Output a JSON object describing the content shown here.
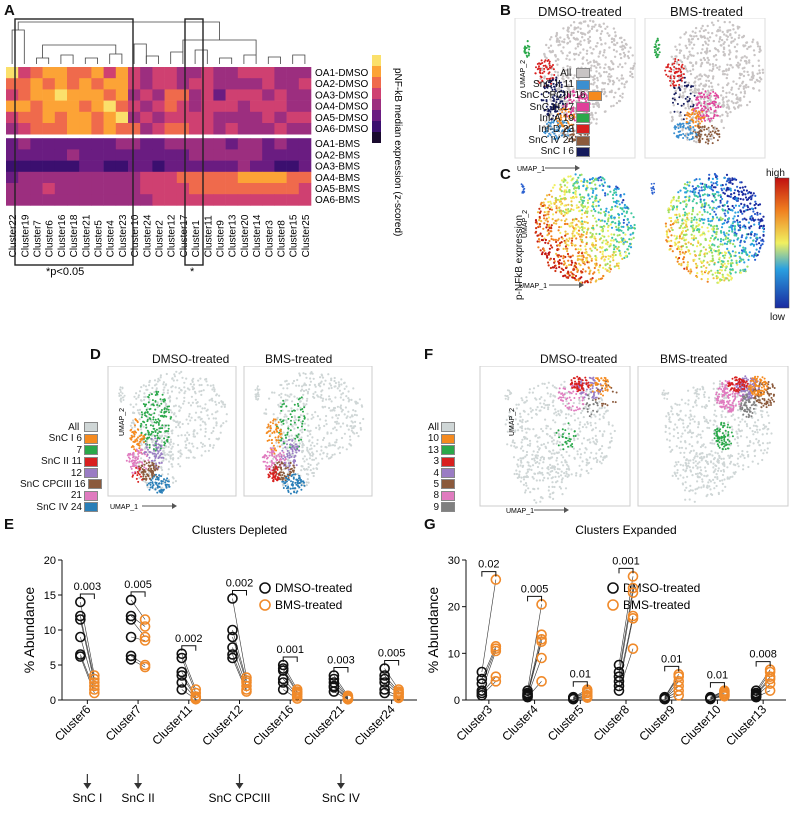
{
  "panel_letters": [
    "A",
    "B",
    "C",
    "D",
    "E",
    "F",
    "G"
  ],
  "panel_a": {
    "rows": [
      "OA1-DMSO",
      "OA2-DMSO",
      "OA3-DMSO",
      "OA4-DMSO",
      "OA5-DMSO",
      "OA6-DMSO",
      "OA1-BMS",
      "OA2-BMS",
      "OA3-BMS",
      "OA4-BMS",
      "OA5-BMS",
      "OA6-BMS"
    ],
    "columns": [
      "Cluster22",
      "Cluster19",
      "Cluster7",
      "Cluster6",
      "Cluster16",
      "Cluster18",
      "Cluster21",
      "Cluster5",
      "Cluster4",
      "Cluster23",
      "Cluster10",
      "Cluster24",
      "Cluster2",
      "Cluster12",
      "Cluster17",
      "Cluster1",
      "Cluster11",
      "Cluster9",
      "Cluster13",
      "Cluster20",
      "Cluster14",
      "Cluster3",
      "Cluster8",
      "Cluster15",
      "Cluster25"
    ],
    "colorbar_label": "pNF-kB median expression (z-scored)",
    "annot_box1": "*p<0.05",
    "annot_box2": "*"
  },
  "panel_b": {
    "titles": [
      "DMSO-treated",
      "BMS-treated"
    ],
    "axis_y": "UMAP_2",
    "axis_x": "UMAP_1",
    "legend": [
      {
        "label": "All",
        "num": "",
        "color": "#c8c4c4"
      },
      {
        "label": "SnC II",
        "num": "11",
        "color": "#3b8fd0"
      },
      {
        "label": "SnC CPCIII",
        "num": "16",
        "color": "#f58a1f"
      },
      {
        "label": "SnC III",
        "num": "17",
        "color": "#e0409a"
      },
      {
        "label": "Inf-A",
        "num": "19",
        "color": "#2aa84a"
      },
      {
        "label": "Inf-D",
        "num": "23",
        "color": "#d8201f"
      },
      {
        "label": "SnC IV",
        "num": "24",
        "color": "#8b5a3c"
      },
      {
        "label": "SnC I",
        "num": "6",
        "color": "#141a5c"
      }
    ]
  },
  "panel_c": {
    "ylabel": "p-NFkB expression",
    "axis_y": "UMAP_2",
    "axis_x": "UMAP_1",
    "high": "high",
    "low": "low"
  },
  "panel_d": {
    "titles": [
      "DMSO-treated",
      "BMS-treated"
    ],
    "axis_y": "UMAP_2",
    "axis_x": "UMAP_1",
    "legend": [
      {
        "label": "All",
        "num": "",
        "color": "#cfd6d6"
      },
      {
        "label": "SnC I",
        "num": "6",
        "color": "#f58a1f"
      },
      {
        "label": "",
        "num": "7",
        "color": "#2aa84a"
      },
      {
        "label": "SnC II",
        "num": "11",
        "color": "#d8201f"
      },
      {
        "label": "",
        "num": "12",
        "color": "#9a7cc4"
      },
      {
        "label": "SnC CPCIII",
        "num": "16",
        "color": "#8b5a3c"
      },
      {
        "label": "",
        "num": "21",
        "color": "#e07bbf"
      },
      {
        "label": "SnC IV",
        "num": "24",
        "color": "#2a7fb8"
      }
    ]
  },
  "panel_f": {
    "titles": [
      "DMSO-treated",
      "BMS-treated"
    ],
    "axis_y": "UMAP_2",
    "axis_x": "UMAP_1",
    "legend": [
      {
        "label": "All",
        "color": "#cfd6d6"
      },
      {
        "label": "10",
        "color": "#f58a1f"
      },
      {
        "label": "13",
        "color": "#2aa84a"
      },
      {
        "label": "3",
        "color": "#d8201f"
      },
      {
        "label": "4",
        "color": "#9a7cc4"
      },
      {
        "label": "5",
        "color": "#8b5a3c"
      },
      {
        "label": "8",
        "color": "#e07bbf"
      },
      {
        "label": "9",
        "color": "#808080"
      }
    ]
  },
  "chart_data": [
    {
      "type": "scatter",
      "id": "E",
      "title": "Clusters Depleted",
      "ylabel": "% Abundance",
      "ylim": [
        0,
        20
      ],
      "yticks": [
        0,
        5,
        10,
        15,
        20
      ],
      "legend": [
        "DMSO-treated",
        "BMS-treated"
      ],
      "colors": {
        "DMSO-treated": "#111111",
        "BMS-treated": "#f08a2a"
      },
      "categories": [
        "Cluster6",
        "Cluster7",
        "Cluster11",
        "Cluster12",
        "Cluster16",
        "Cluster21",
        "Cluster24"
      ],
      "pvalues": [
        "0.003",
        "0.005",
        "0.002",
        "0.002",
        "0.001",
        "0.003",
        "0.005"
      ],
      "series": [
        {
          "name": "DMSO-treated",
          "values": [
            [
              14.0,
              12.0,
              11.5,
              9.0,
              6.5,
              6.2
            ],
            [
              14.3,
              12.0,
              11.5,
              9.0,
              6.3,
              5.8
            ],
            [
              6.6,
              6.0,
              4.0,
              3.5,
              2.5,
              1.5
            ],
            [
              14.5,
              10.0,
              9.0,
              7.5,
              6.5,
              6.0
            ],
            [
              5.0,
              4.5,
              4.2,
              3.0,
              2.5,
              1.5
            ],
            [
              3.5,
              3.0,
              2.5,
              2.0,
              1.8,
              1.2
            ],
            [
              4.5,
              3.5,
              3.0,
              2.5,
              1.5,
              1.0
            ]
          ]
        },
        {
          "name": "BMS-treated",
          "values": [
            [
              3.5,
              3.0,
              2.5,
              2.0,
              1.5,
              1.0
            ],
            [
              11.5,
              10.5,
              9.0,
              8.5,
              5.0,
              4.7
            ],
            [
              1.5,
              1.0,
              0.5,
              0.3,
              0.2,
              0.1
            ],
            [
              3.2,
              2.8,
              2.5,
              2.0,
              1.5,
              1.2
            ],
            [
              1.5,
              1.2,
              1.0,
              0.8,
              0.5,
              0.2
            ],
            [
              0.6,
              0.4,
              0.3,
              0.2,
              0.1,
              0.1
            ],
            [
              1.5,
              1.2,
              1.0,
              0.8,
              0.5,
              0.3
            ]
          ]
        }
      ],
      "group_labels": [
        "SnC I",
        "SnC II",
        "SnC CPCIII",
        "SnC IV"
      ]
    },
    {
      "type": "scatter",
      "id": "G",
      "title": "Clusters Expanded",
      "ylabel": "% Abundance",
      "ylim": [
        0,
        30
      ],
      "yticks": [
        0,
        10,
        20,
        30
      ],
      "legend": [
        "DMSO-treated",
        "BMS-treated"
      ],
      "colors": {
        "DMSO-treated": "#111111",
        "BMS-treated": "#f08a2a"
      },
      "categories": [
        "Cluster3",
        "Cluster4",
        "Cluster5",
        "Cluster8",
        "Cluster9",
        "Cluster10",
        "Cluster13"
      ],
      "pvalues": [
        "0.02",
        "0.005",
        "0.01",
        "0.001",
        "0.01",
        "0.01",
        "0.008"
      ],
      "series": [
        {
          "name": "DMSO-treated",
          "values": [
            [
              6.0,
              4.5,
              3.5,
              2.0,
              1.5,
              1.0
            ],
            [
              2.0,
              1.5,
              1.2,
              1.0,
              0.8,
              0.6
            ],
            [
              0.6,
              0.5,
              0.4,
              0.3,
              0.2,
              0.2
            ],
            [
              7.5,
              6.0,
              5.0,
              4.0,
              3.0,
              2.0
            ],
            [
              0.6,
              0.5,
              0.4,
              0.3,
              0.2,
              0.2
            ],
            [
              0.6,
              0.5,
              0.4,
              0.3,
              0.3,
              0.2
            ],
            [
              2.0,
              1.5,
              1.2,
              1.0,
              0.8,
              0.6
            ]
          ]
        },
        {
          "name": "BMS-treated",
          "values": [
            [
              25.8,
              11.5,
              11.0,
              10.5,
              5.0,
              4.0
            ],
            [
              20.5,
              14.0,
              13.0,
              12.5,
              9.0,
              4.0
            ],
            [
              2.2,
              1.8,
              1.5,
              1.0,
              0.8,
              0.5
            ],
            [
              26.5,
              24.0,
              23.0,
              18.0,
              17.5,
              11.0
            ],
            [
              5.5,
              5.0,
              4.0,
              3.0,
              2.0,
              1.0
            ],
            [
              2.0,
              1.8,
              1.5,
              1.2,
              1.0,
              0.8
            ],
            [
              6.5,
              6.0,
              5.0,
              4.5,
              3.5,
              2.0
            ]
          ]
        }
      ]
    }
  ]
}
